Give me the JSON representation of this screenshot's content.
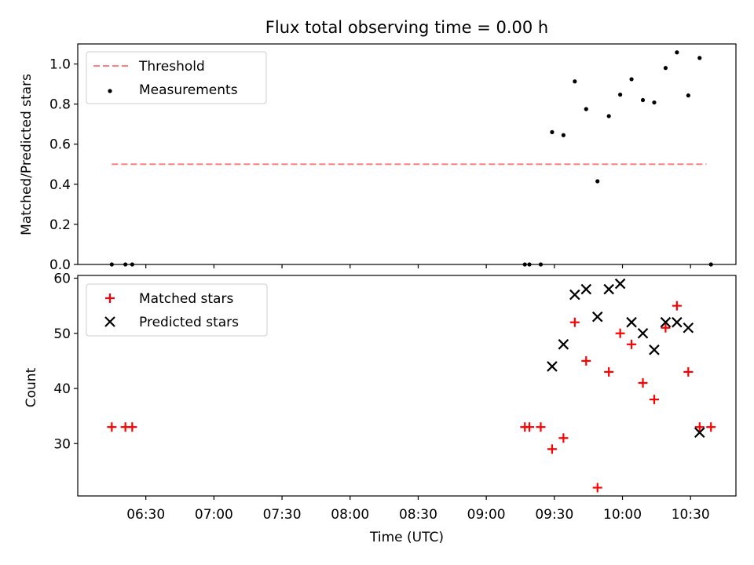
{
  "chart_data": [
    {
      "type": "scatter",
      "title": "Flux total observing time = 0.00 h",
      "ylabel": "Matched/Predicted stars",
      "xlabel": "",
      "ylim": [
        0,
        1.1
      ],
      "yticks": [
        0.0,
        0.2,
        0.4,
        0.6,
        0.8,
        1.0
      ],
      "ytick_labels": [
        "0.0",
        "0.2",
        "0.4",
        "0.6",
        "0.8",
        "1.0"
      ],
      "legend_position": "top-left",
      "threshold": {
        "name": "Threshold",
        "value": 0.5,
        "x_start": "06:15",
        "x_end": "10:37",
        "color": "#ff7f7f"
      },
      "series": [
        {
          "name": "Measurements",
          "color": "#000000",
          "x": [
            "06:15",
            "06:21",
            "06:24",
            "09:17",
            "09:19",
            "09:24",
            "09:29",
            "09:34",
            "09:39",
            "09:44",
            "09:49",
            "09:54",
            "09:59",
            "10:04",
            "10:09",
            "10:14",
            "10:19",
            "10:24",
            "10:29",
            "10:34",
            "10:39"
          ],
          "y": [
            0.0,
            0.0,
            0.0,
            0.0,
            0.0,
            0.0,
            0.66,
            0.645,
            0.913,
            0.775,
            0.415,
            0.74,
            0.847,
            0.924,
            0.82,
            0.808,
            0.98,
            1.058,
            0.843,
            1.03,
            0.0
          ]
        }
      ]
    },
    {
      "type": "scatter",
      "title": "",
      "ylabel": "Count",
      "xlabel": "Time (UTC)",
      "ylim": [
        20.5,
        60.5
      ],
      "yticks": [
        30,
        40,
        50,
        60
      ],
      "ytick_labels": [
        "30",
        "40",
        "50",
        "60"
      ],
      "x_range": [
        "06:00",
        "10:50"
      ],
      "xticks": [
        "06:30",
        "07:00",
        "07:30",
        "08:00",
        "08:30",
        "09:00",
        "09:30",
        "10:00",
        "10:30"
      ],
      "xtick_labels": [
        "06:30",
        "07:00",
        "07:30",
        "08:00",
        "08:30",
        "09:00",
        "09:30",
        "10:00",
        "10:30"
      ],
      "legend_position": "top-left",
      "series": [
        {
          "name": "Matched stars",
          "marker": "+",
          "color": "#ff0000",
          "x": [
            "06:15",
            "06:21",
            "06:24",
            "09:17",
            "09:19",
            "09:24",
            "09:29",
            "09:34",
            "09:39",
            "09:44",
            "09:49",
            "09:54",
            "09:59",
            "10:04",
            "10:09",
            "10:14",
            "10:19",
            "10:24",
            "10:29",
            "10:34",
            "10:39"
          ],
          "y": [
            33,
            33,
            33,
            33,
            33,
            33,
            29,
            31,
            52,
            45,
            22,
            43,
            50,
            48,
            41,
            38,
            51,
            55,
            43,
            33,
            33
          ]
        },
        {
          "name": "Predicted stars",
          "marker": "x",
          "color": "#000000",
          "x": [
            "09:29",
            "09:34",
            "09:39",
            "09:44",
            "09:49",
            "09:54",
            "09:59",
            "10:04",
            "10:09",
            "10:14",
            "10:19",
            "10:24",
            "10:29",
            "10:34"
          ],
          "y": [
            44,
            48,
            57,
            58,
            53,
            58,
            59,
            52,
            50,
            47,
            52,
            52,
            51,
            32
          ]
        }
      ]
    }
  ]
}
